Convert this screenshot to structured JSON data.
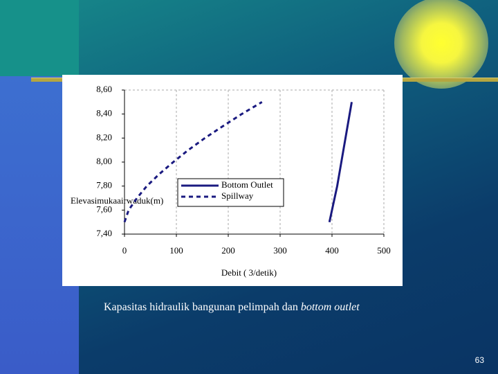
{
  "chart_data": {
    "type": "line",
    "x_label": "Debit ( 3/detik)",
    "y_label": "Elevasimukaairwaduk(m)",
    "xlim": [
      0,
      500
    ],
    "xticks": [
      0,
      100,
      200,
      300,
      400,
      500
    ],
    "ylim": [
      7.4,
      8.6
    ],
    "yticks": [
      {
        "value": 7.4,
        "label": "7,40"
      },
      {
        "value": 7.6,
        "label": "7,60"
      },
      {
        "value": 7.8,
        "label": "7,80"
      },
      {
        "value": 8.0,
        "label": "8,00"
      },
      {
        "value": 8.2,
        "label": "8,20"
      },
      {
        "value": 8.4,
        "label": "8,40"
      },
      {
        "value": 8.6,
        "label": "8,60"
      }
    ],
    "grid": true,
    "series": [
      {
        "name": "Bottom Outlet",
        "color": "#1a1a80",
        "style": "solid",
        "x": [
          395,
          400,
          405,
          410,
          414,
          418,
          422,
          426,
          430,
          434,
          438
        ],
        "values": [
          7.5,
          7.6,
          7.7,
          7.8,
          7.9,
          8.0,
          8.1,
          8.2,
          8.3,
          8.4,
          8.5
        ]
      },
      {
        "name": "Spillway",
        "color": "#1a1a80",
        "style": "dashed",
        "x": [
          0,
          8,
          24,
          43,
          67,
          94,
          123,
          155,
          190,
          226,
          265
        ],
        "values": [
          7.5,
          7.6,
          7.7,
          7.8,
          7.9,
          8.0,
          8.1,
          8.2,
          8.3,
          8.4,
          8.5
        ]
      }
    ]
  },
  "caption": {
    "text": "Kapasitas hidraulik bangunan pelimpah dan ",
    "italic": "bottom outlet"
  },
  "page_number": "63"
}
